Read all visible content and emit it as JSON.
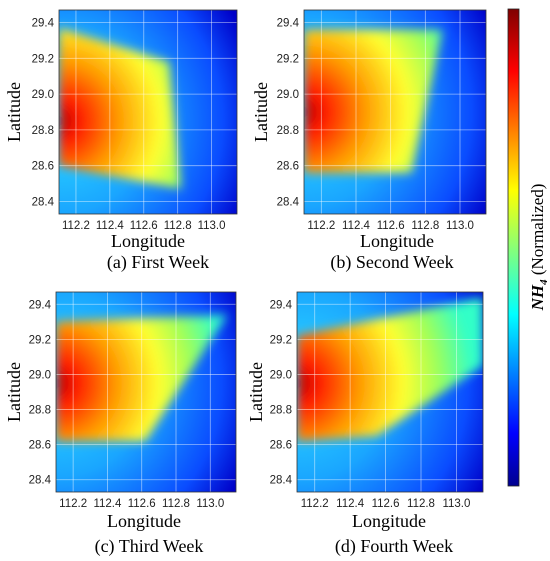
{
  "colorbar": {
    "label_bold": "NH",
    "label_sub": "4",
    "label_rest": " (Normalized)",
    "colormap": "jet"
  },
  "chart_data": [
    {
      "type": "heatmap",
      "caption": "(a)  First Week",
      "xlabel": "Longitude",
      "ylabel": "Latitude",
      "xlim": [
        112.1,
        113.15
      ],
      "ylim": [
        28.33,
        29.47
      ],
      "xticks": [
        "112.2",
        "112.4",
        "112.6",
        "112.8",
        "113.0"
      ],
      "yticks": [
        "28.4",
        "28.6",
        "28.8",
        "29.0",
        "29.2",
        "29.4"
      ],
      "grid": true,
      "peak": [
        112.1,
        28.85
      ],
      "polygon": [
        [
          112.1,
          29.37
        ],
        [
          112.75,
          29.18
        ],
        [
          112.82,
          28.47
        ],
        [
          112.1,
          28.6
        ]
      ]
    },
    {
      "type": "heatmap",
      "caption": "(b)  Second Week",
      "xlabel": "Longitude",
      "ylabel": "Latitude",
      "xlim": [
        112.1,
        113.15
      ],
      "ylim": [
        28.33,
        29.47
      ],
      "xticks": [
        "112.2",
        "112.4",
        "112.6",
        "112.8",
        "113.0"
      ],
      "yticks": [
        "28.4",
        "28.6",
        "28.8",
        "29.0",
        "29.2",
        "29.4"
      ],
      "grid": true,
      "peak": [
        112.1,
        28.9
      ],
      "polygon": [
        [
          112.1,
          29.36
        ],
        [
          112.9,
          29.36
        ],
        [
          112.72,
          28.56
        ],
        [
          112.1,
          28.56
        ]
      ]
    },
    {
      "type": "heatmap",
      "caption": "(c)  Third Week",
      "xlabel": "Longitude",
      "ylabel": "Latitude",
      "xlim": [
        112.1,
        113.15
      ],
      "ylim": [
        28.33,
        29.47
      ],
      "xticks": [
        "112.2",
        "112.4",
        "112.6",
        "112.8",
        "113.0"
      ],
      "yticks": [
        "28.4",
        "28.6",
        "28.8",
        "29.0",
        "29.2",
        "29.4"
      ],
      "grid": true,
      "peak": [
        112.1,
        28.95
      ],
      "polygon": [
        [
          112.1,
          29.3
        ],
        [
          113.1,
          29.34
        ],
        [
          112.62,
          28.62
        ],
        [
          112.1,
          28.62
        ]
      ]
    },
    {
      "type": "heatmap",
      "caption": "(d) Fourth Week",
      "xlabel": "Longitude",
      "ylabel": "Latitude",
      "xlim": [
        112.1,
        113.15
      ],
      "ylim": [
        28.33,
        29.47
      ],
      "xticks": [
        "112.2",
        "112.4",
        "112.6",
        "112.8",
        "113.0"
      ],
      "yticks": [
        "28.4",
        "28.6",
        "28.8",
        "29.0",
        "29.2",
        "29.4"
      ],
      "grid": true,
      "peak": [
        112.1,
        28.95
      ],
      "polygon": [
        [
          112.1,
          29.22
        ],
        [
          113.15,
          29.44
        ],
        [
          113.15,
          29.05
        ],
        [
          112.55,
          28.65
        ],
        [
          112.1,
          28.62
        ]
      ]
    }
  ]
}
